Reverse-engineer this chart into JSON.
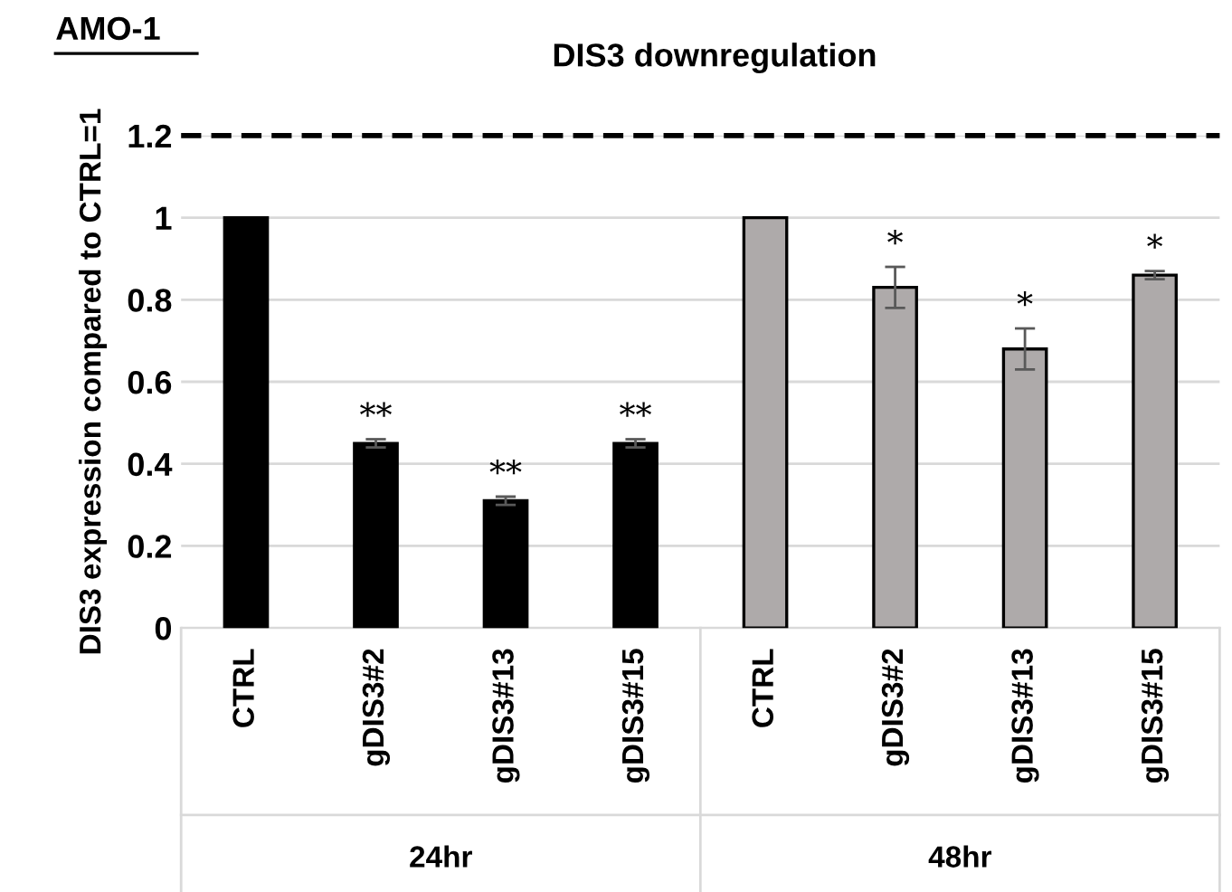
{
  "chart_data": {
    "type": "bar",
    "title": "DIS3 downregulation",
    "ylabel": "DIS3 expression compared to CTRL=1",
    "categories": [
      "CTRL",
      "gDIS3#2",
      "gDIS3#13",
      "gDIS3#15",
      "CTRL",
      "gDIS3#2",
      "gDIS3#13",
      "gDIS3#15"
    ],
    "values": [
      1,
      0.45,
      0.31,
      0.45,
      1,
      0.83,
      0.68,
      0.86
    ],
    "errors": [
      null,
      0.01,
      0.01,
      0.01,
      null,
      0.05,
      0.05,
      0.01
    ],
    "colors": [
      "#000000",
      "#000000",
      "#000000",
      "#000000",
      "#aeaaaa",
      "#aeaaaa",
      "#aeaaaa",
      "#aeaaaa"
    ],
    "value_labels": [
      null,
      "**",
      "**",
      "**",
      null,
      "*",
      "*",
      "*"
    ],
    "annotations": [
      "AMO-1",
      "24hr",
      "48hr"
    ],
    "ref_lines": [
      {
        "axis": "y",
        "value": 1.2,
        "color": "#000000",
        "line_style": "dashed"
      }
    ],
    "ylim": [
      0,
      1.2
    ],
    "yticks": [
      0,
      0.2,
      0.4,
      0.6,
      0.8,
      1,
      1.2
    ],
    "grid": "y"
  }
}
